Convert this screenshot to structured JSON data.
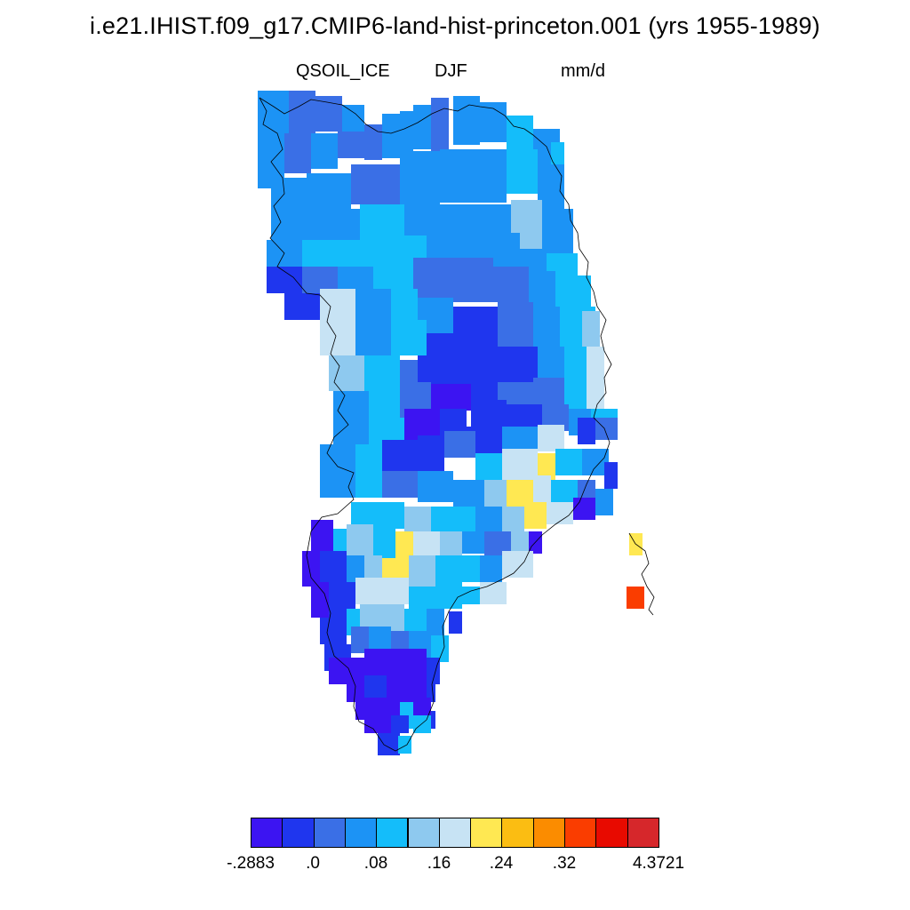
{
  "title": "i.e21.IHIST.f09_g17.CMIP6-land-hist-princeton.001 (yrs 1955-1989)",
  "variable": "QSOIL_ICE",
  "season": "DJF",
  "units": "mm/d",
  "colorbar": {
    "colors": [
      "#3c14f2",
      "#1f36ee",
      "#3a6fe6",
      "#1c93f5",
      "#14bdfa",
      "#8ec9ef",
      "#c7e3f4",
      "#ffe852",
      "#fbbd12",
      "#fb8c00",
      "#fa3d00",
      "#e80a00",
      "#d6272b"
    ],
    "labels": [
      "-.2883",
      ".0",
      ".08",
      ".16",
      ".24",
      ".32",
      "4.3721"
    ]
  }
}
